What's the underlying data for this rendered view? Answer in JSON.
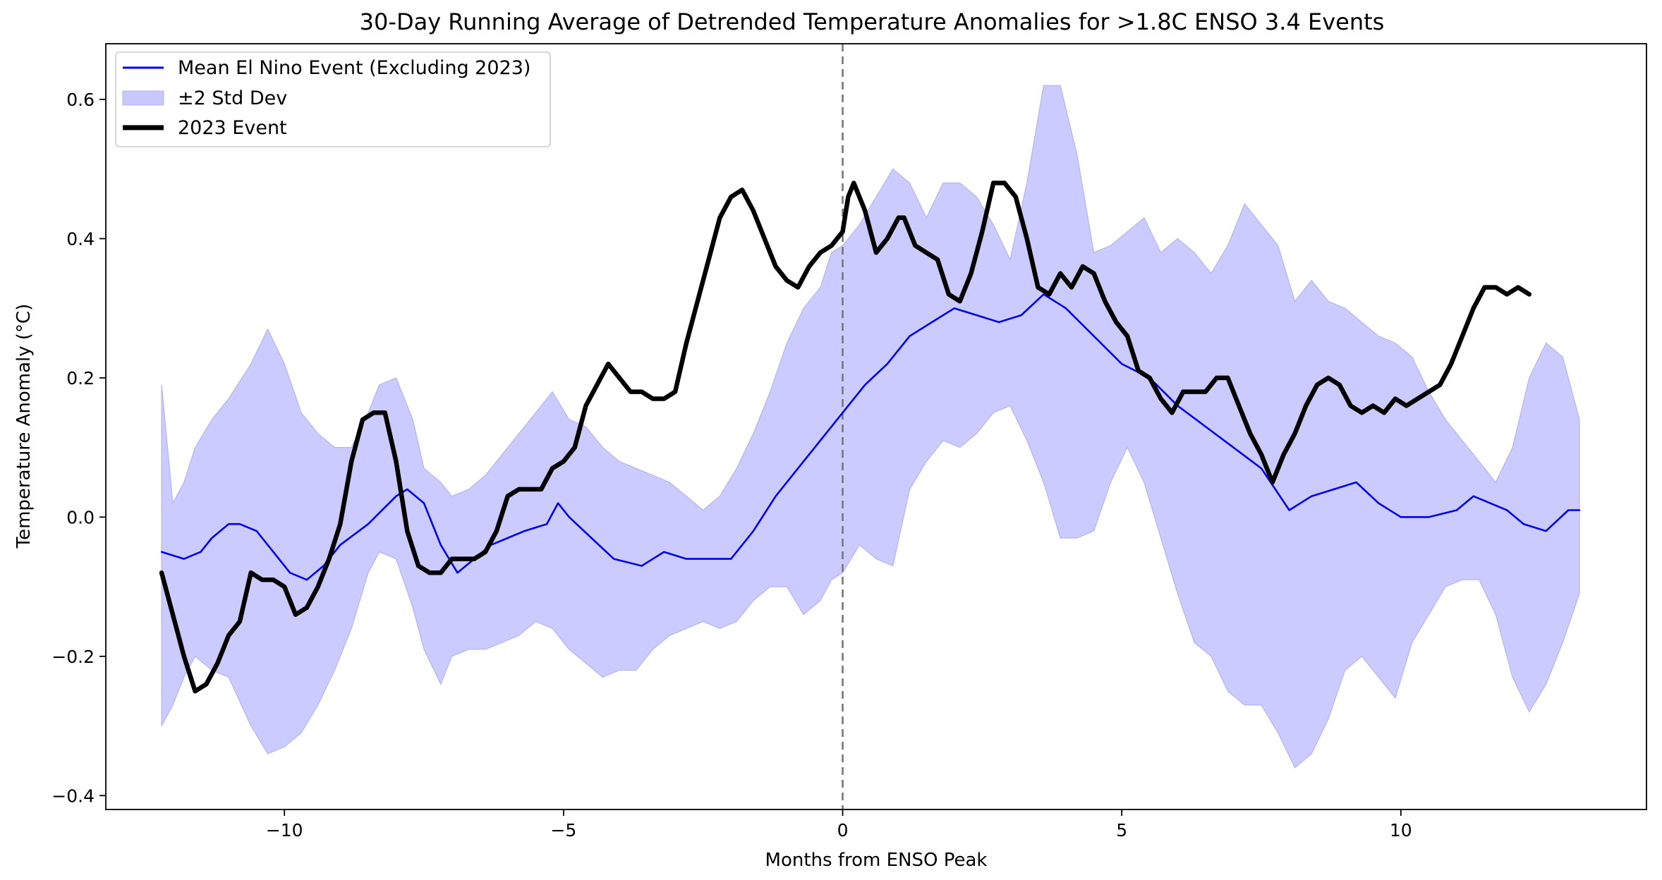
{
  "chart_data": {
    "type": "line",
    "title": "30-Day Running Average of Detrended Temperature Anomalies for >1.8C ENSO 3.4 Events",
    "xlabel": "Months from ENSO Peak",
    "ylabel": "Temperature Anomaly (°C)",
    "xlim": [
      -13.2,
      14.4
    ],
    "ylim": [
      -0.42,
      0.68
    ],
    "x_ticks": [
      -10,
      -5,
      0,
      5,
      10
    ],
    "x_tick_labels": [
      "−10",
      "−5",
      "0",
      "5",
      "10"
    ],
    "y_ticks": [
      -0.4,
      -0.2,
      0.0,
      0.2,
      0.4,
      0.6
    ],
    "y_tick_labels": [
      "−0.4",
      "−0.2",
      "0.0",
      "0.2",
      "0.4",
      "0.6"
    ],
    "grid": false,
    "legend_position": "top-left",
    "vline": {
      "x": 0,
      "style": "dashed",
      "color": "#777777"
    },
    "legend": [
      {
        "label": "Mean El Nino Event (Excluding 2023)",
        "kind": "line",
        "color": "#0000ee"
      },
      {
        "label": "±2 Std Dev",
        "kind": "band",
        "color": "#c8c8ff"
      },
      {
        "label": "2023 Event",
        "kind": "line",
        "color": "#000000"
      }
    ],
    "series": [
      {
        "name": "Mean El Nino Event (Excluding 2023)",
        "color": "#0000ee",
        "x": [
          -12.2,
          -11.8,
          -11.5,
          -11.3,
          -11.0,
          -10.8,
          -10.5,
          -10.2,
          -9.9,
          -9.6,
          -9.3,
          -9.0,
          -8.5,
          -8.0,
          -7.8,
          -7.5,
          -7.2,
          -6.9,
          -6.6,
          -6.3,
          -6.0,
          -5.7,
          -5.3,
          -5.1,
          -4.9,
          -4.5,
          -4.1,
          -3.6,
          -3.2,
          -2.8,
          -2.5,
          -2.2,
          -2.0,
          -1.6,
          -1.2,
          -0.8,
          -0.4,
          0.0,
          0.4,
          0.8,
          1.2,
          1.6,
          2.0,
          2.4,
          2.8,
          3.2,
          3.6,
          4.0,
          4.5,
          5.0,
          5.5,
          6.0,
          6.5,
          7.0,
          7.5,
          8.0,
          8.4,
          8.8,
          9.2,
          9.6,
          10.0,
          10.5,
          11.0,
          11.3,
          11.6,
          11.9,
          12.2,
          12.6,
          13.0,
          13.2
        ],
        "values": [
          -0.05,
          -0.06,
          -0.05,
          -0.03,
          -0.01,
          -0.01,
          -0.02,
          -0.05,
          -0.08,
          -0.09,
          -0.07,
          -0.04,
          -0.01,
          0.03,
          0.04,
          0.02,
          -0.04,
          -0.08,
          -0.06,
          -0.04,
          -0.03,
          -0.02,
          -0.01,
          0.02,
          0.0,
          -0.03,
          -0.06,
          -0.07,
          -0.05,
          -0.06,
          -0.06,
          -0.06,
          -0.06,
          -0.02,
          0.03,
          0.07,
          0.11,
          0.15,
          0.19,
          0.22,
          0.26,
          0.28,
          0.3,
          0.29,
          0.28,
          0.29,
          0.32,
          0.3,
          0.26,
          0.22,
          0.2,
          0.16,
          0.13,
          0.1,
          0.07,
          0.01,
          0.03,
          0.04,
          0.05,
          0.02,
          0.0,
          0.0,
          0.01,
          0.03,
          0.02,
          0.01,
          -0.01,
          -0.02,
          0.01,
          0.01
        ]
      },
      {
        "name": "2023 Event",
        "color": "#000000",
        "x": [
          -12.2,
          -12.0,
          -11.8,
          -11.6,
          -11.4,
          -11.2,
          -11.0,
          -10.8,
          -10.6,
          -10.4,
          -10.2,
          -10.0,
          -9.8,
          -9.6,
          -9.4,
          -9.2,
          -9.0,
          -8.8,
          -8.6,
          -8.4,
          -8.2,
          -8.0,
          -7.8,
          -7.6,
          -7.4,
          -7.2,
          -7.0,
          -6.8,
          -6.6,
          -6.4,
          -6.2,
          -6.0,
          -5.8,
          -5.6,
          -5.4,
          -5.2,
          -5.0,
          -4.8,
          -4.6,
          -4.4,
          -4.2,
          -4.0,
          -3.8,
          -3.6,
          -3.4,
          -3.2,
          -3.0,
          -2.8,
          -2.6,
          -2.4,
          -2.2,
          -2.0,
          -1.8,
          -1.6,
          -1.4,
          -1.2,
          -1.0,
          -0.8,
          -0.6,
          -0.4,
          -0.2,
          0.0,
          0.1,
          0.2,
          0.4,
          0.6,
          0.8,
          1.0,
          1.1,
          1.3,
          1.5,
          1.7,
          1.9,
          2.1,
          2.3,
          2.5,
          2.7,
          2.9,
          3.1,
          3.3,
          3.5,
          3.7,
          3.9,
          4.1,
          4.3,
          4.5,
          4.7,
          4.9,
          5.1,
          5.3,
          5.5,
          5.7,
          5.9,
          6.1,
          6.3,
          6.5,
          6.7,
          6.9,
          7.1,
          7.3,
          7.5,
          7.7,
          7.9,
          8.1,
          8.3,
          8.5,
          8.7,
          8.9,
          9.1,
          9.3,
          9.5,
          9.7,
          9.9,
          10.1,
          10.3,
          10.5,
          10.7,
          10.9,
          11.1,
          11.3,
          11.5,
          11.7,
          11.9,
          12.1,
          12.3
        ],
        "values": [
          -0.08,
          -0.14,
          -0.2,
          -0.25,
          -0.24,
          -0.21,
          -0.17,
          -0.15,
          -0.08,
          -0.09,
          -0.09,
          -0.1,
          -0.14,
          -0.13,
          -0.1,
          -0.06,
          -0.01,
          0.08,
          0.14,
          0.15,
          0.15,
          0.08,
          -0.02,
          -0.07,
          -0.08,
          -0.08,
          -0.06,
          -0.06,
          -0.06,
          -0.05,
          -0.02,
          0.03,
          0.04,
          0.04,
          0.04,
          0.07,
          0.08,
          0.1,
          0.16,
          0.19,
          0.22,
          0.2,
          0.18,
          0.18,
          0.17,
          0.17,
          0.18,
          0.25,
          0.31,
          0.37,
          0.43,
          0.46,
          0.47,
          0.44,
          0.4,
          0.36,
          0.34,
          0.33,
          0.36,
          0.38,
          0.39,
          0.41,
          0.46,
          0.48,
          0.44,
          0.38,
          0.4,
          0.43,
          0.43,
          0.39,
          0.38,
          0.37,
          0.32,
          0.31,
          0.35,
          0.41,
          0.48,
          0.48,
          0.46,
          0.4,
          0.33,
          0.32,
          0.35,
          0.33,
          0.36,
          0.35,
          0.31,
          0.28,
          0.26,
          0.21,
          0.2,
          0.17,
          0.15,
          0.18,
          0.18,
          0.18,
          0.2,
          0.2,
          0.16,
          0.12,
          0.09,
          0.05,
          0.09,
          0.12,
          0.16,
          0.19,
          0.2,
          0.19,
          0.16,
          0.15,
          0.16,
          0.15,
          0.17,
          0.16,
          0.17,
          0.18,
          0.19,
          0.22,
          0.26,
          0.3,
          0.33,
          0.33,
          0.32,
          0.33,
          0.32
        ]
      }
    ],
    "band": {
      "name": "±2 Std Dev",
      "color": "#c8c8ff",
      "x": [
        -12.2,
        -12.0,
        -11.8,
        -11.6,
        -11.3,
        -11.0,
        -10.6,
        -10.3,
        -10.0,
        -9.7,
        -9.4,
        -9.1,
        -8.8,
        -8.5,
        -8.3,
        -8.0,
        -7.7,
        -7.5,
        -7.2,
        -7.0,
        -6.7,
        -6.4,
        -6.1,
        -5.8,
        -5.5,
        -5.2,
        -4.9,
        -4.6,
        -4.3,
        -4.0,
        -3.7,
        -3.4,
        -3.1,
        -2.8,
        -2.5,
        -2.2,
        -1.9,
        -1.6,
        -1.3,
        -1.0,
        -0.7,
        -0.4,
        -0.2,
        0.0,
        0.3,
        0.6,
        0.9,
        1.2,
        1.5,
        1.8,
        2.1,
        2.4,
        2.7,
        3.0,
        3.3,
        3.6,
        3.9,
        4.2,
        4.5,
        4.8,
        5.1,
        5.4,
        5.7,
        6.0,
        6.3,
        6.6,
        6.9,
        7.2,
        7.5,
        7.8,
        8.1,
        8.4,
        8.7,
        9.0,
        9.3,
        9.6,
        9.9,
        10.2,
        10.5,
        10.8,
        11.1,
        11.4,
        11.7,
        12.0,
        12.3,
        12.6,
        12.9,
        13.2
      ],
      "upper": [
        0.19,
        0.02,
        0.05,
        0.1,
        0.14,
        0.17,
        0.22,
        0.27,
        0.22,
        0.15,
        0.12,
        0.1,
        0.1,
        0.15,
        0.19,
        0.2,
        0.14,
        0.07,
        0.05,
        0.03,
        0.04,
        0.06,
        0.09,
        0.12,
        0.15,
        0.18,
        0.14,
        0.13,
        0.1,
        0.08,
        0.07,
        0.06,
        0.05,
        0.03,
        0.01,
        0.03,
        0.07,
        0.12,
        0.18,
        0.25,
        0.3,
        0.33,
        0.38,
        0.39,
        0.42,
        0.46,
        0.5,
        0.48,
        0.43,
        0.48,
        0.48,
        0.46,
        0.42,
        0.37,
        0.48,
        0.62,
        0.62,
        0.52,
        0.38,
        0.39,
        0.41,
        0.43,
        0.38,
        0.4,
        0.38,
        0.35,
        0.39,
        0.45,
        0.42,
        0.39,
        0.31,
        0.34,
        0.31,
        0.3,
        0.28,
        0.26,
        0.25,
        0.23,
        0.18,
        0.14,
        0.11,
        0.08,
        0.05,
        0.1,
        0.2,
        0.25,
        0.23,
        0.14
      ],
      "lower": [
        -0.3,
        -0.27,
        -0.23,
        -0.2,
        -0.22,
        -0.23,
        -0.3,
        -0.34,
        -0.33,
        -0.31,
        -0.27,
        -0.22,
        -0.16,
        -0.08,
        -0.05,
        -0.06,
        -0.13,
        -0.19,
        -0.24,
        -0.2,
        -0.19,
        -0.19,
        -0.18,
        -0.17,
        -0.15,
        -0.16,
        -0.19,
        -0.21,
        -0.23,
        -0.22,
        -0.22,
        -0.19,
        -0.17,
        -0.16,
        -0.15,
        -0.16,
        -0.15,
        -0.12,
        -0.1,
        -0.1,
        -0.14,
        -0.12,
        -0.09,
        -0.08,
        -0.04,
        -0.06,
        -0.07,
        0.04,
        0.08,
        0.11,
        0.1,
        0.12,
        0.15,
        0.16,
        0.11,
        0.05,
        -0.03,
        -0.03,
        -0.02,
        0.05,
        0.1,
        0.05,
        -0.03,
        -0.11,
        -0.18,
        -0.2,
        -0.25,
        -0.27,
        -0.27,
        -0.31,
        -0.36,
        -0.34,
        -0.29,
        -0.22,
        -0.2,
        -0.23,
        -0.26,
        -0.18,
        -0.14,
        -0.1,
        -0.09,
        -0.09,
        -0.14,
        -0.23,
        -0.28,
        -0.24,
        -0.18,
        -0.11
      ]
    }
  }
}
